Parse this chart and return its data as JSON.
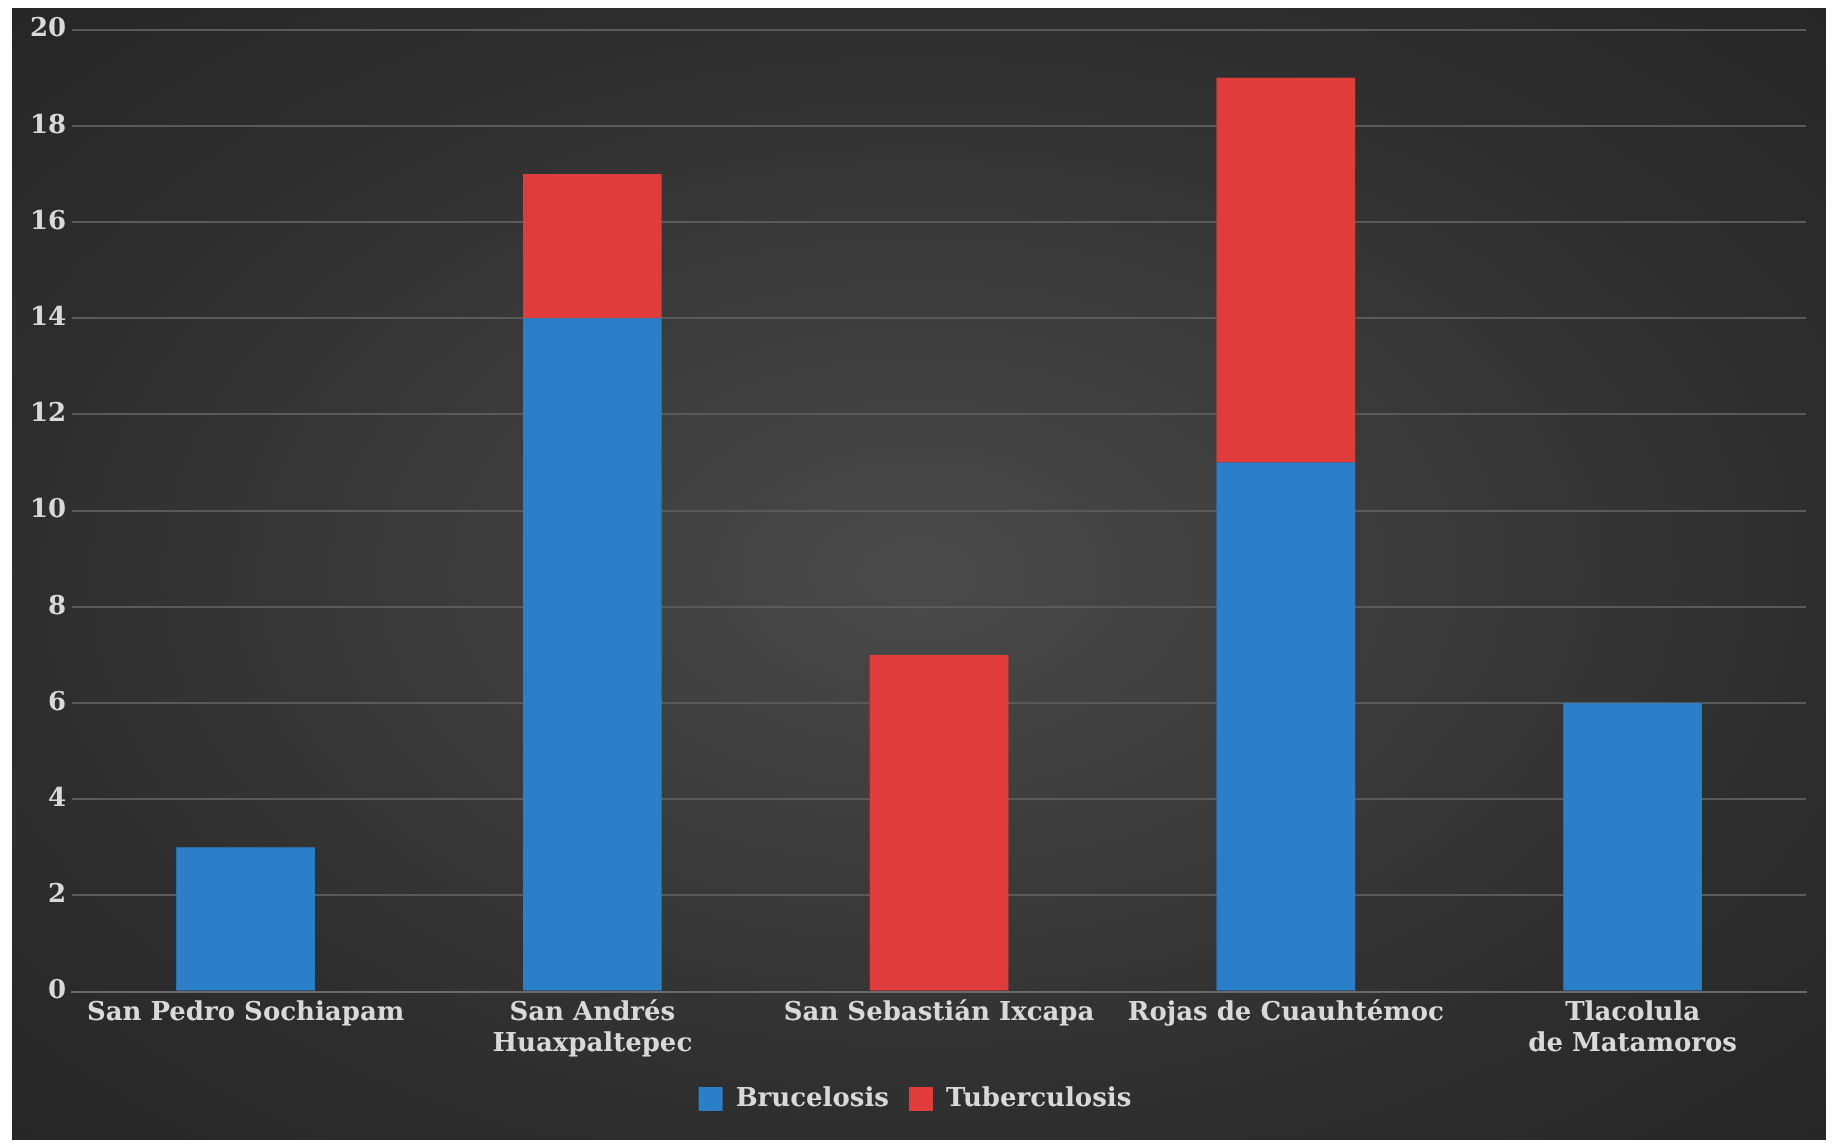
{
  "chart_data": {
    "type": "bar",
    "stacked": true,
    "categories": [
      "San Pedro Sochiapam",
      "San Andrés Huaxpaltepec",
      "San Sebastián Ixcapa",
      "Rojas de Cuauhtémoc",
      "Tlacolula de Matamoros"
    ],
    "series": [
      {
        "name": "Brucelosis",
        "color": "#2b7fc9",
        "values": [
          3,
          14,
          0,
          11,
          6
        ]
      },
      {
        "name": "Tuberculosis",
        "color": "#e03c3c",
        "values": [
          0,
          3,
          7,
          8,
          0
        ]
      }
    ],
    "ylim": [
      0,
      20
    ],
    "yticks": [
      0,
      2,
      4,
      6,
      8,
      10,
      12,
      14,
      16,
      18,
      20
    ],
    "grid": "y",
    "legend": "bottom"
  }
}
